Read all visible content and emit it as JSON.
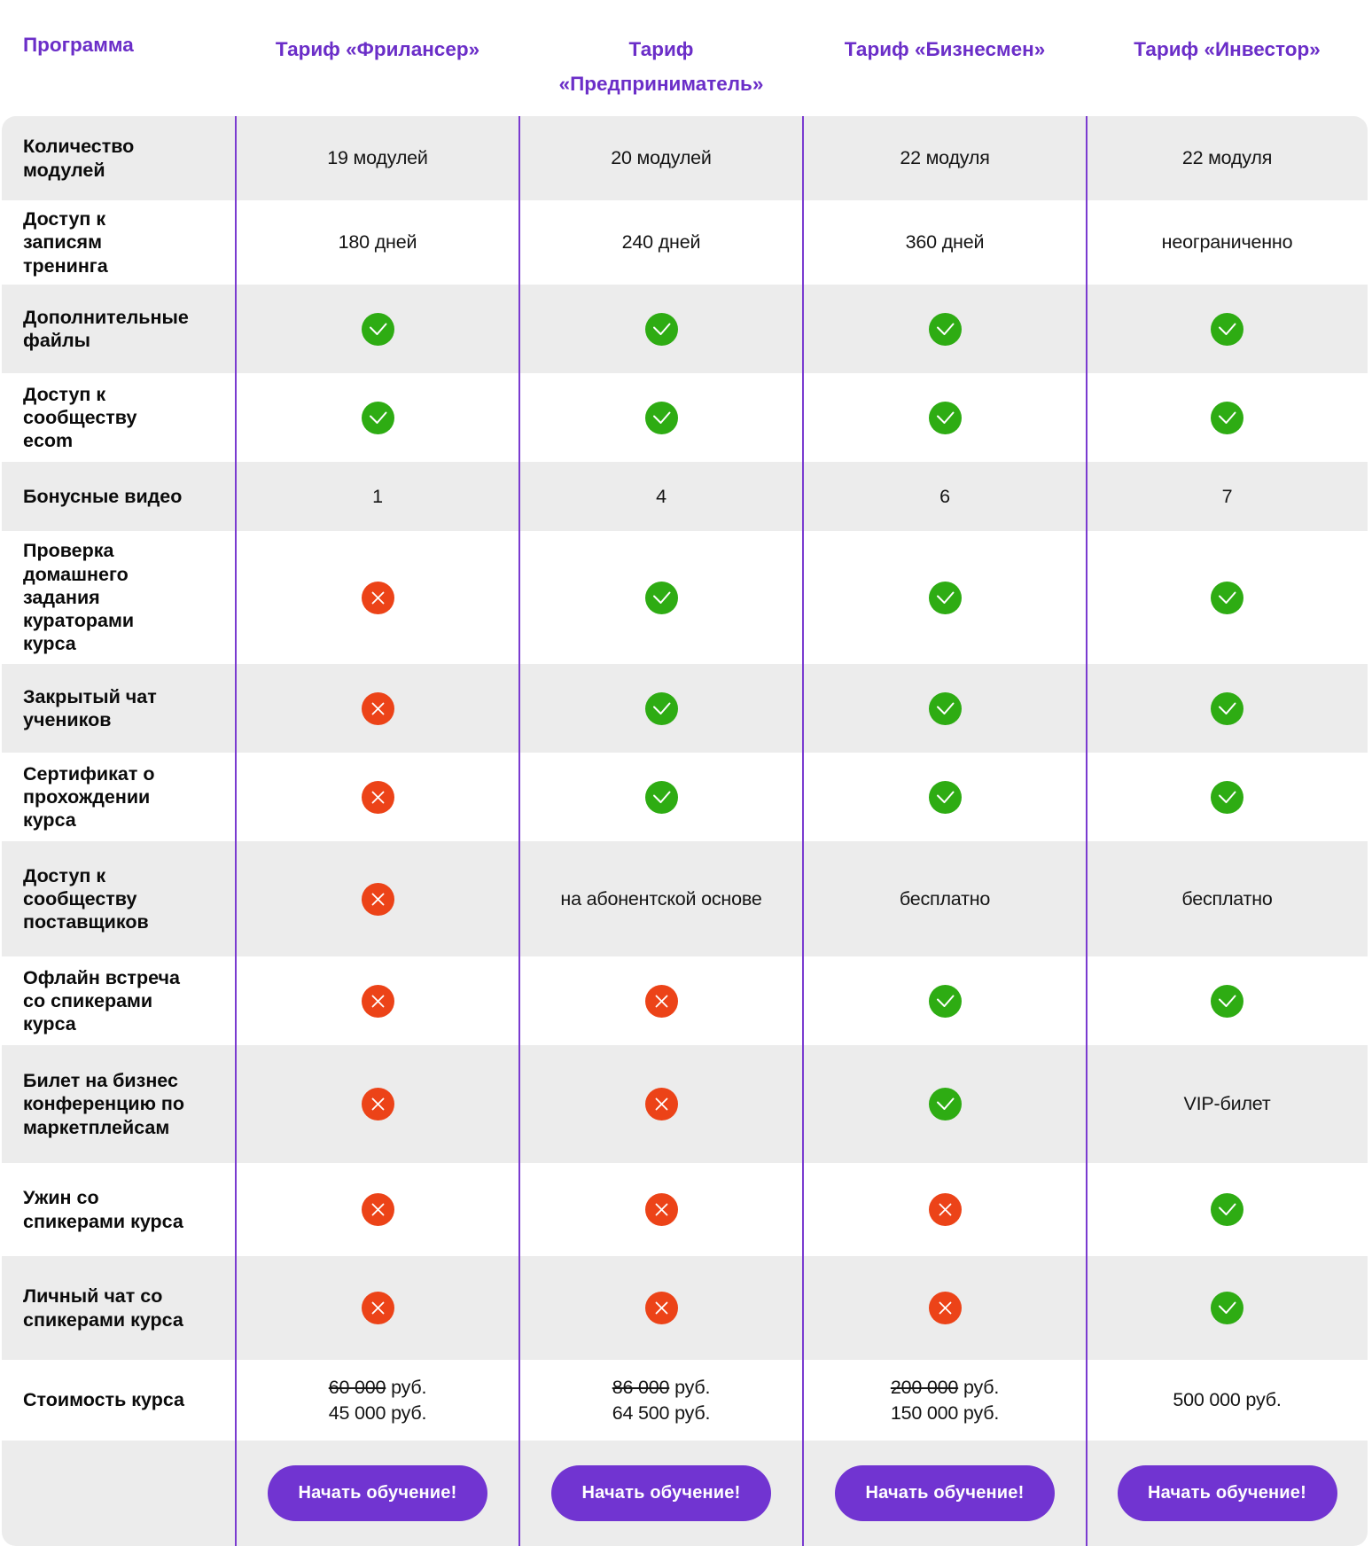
{
  "table": {
    "header": {
      "program": "Программа",
      "plans": [
        "Тариф «Фрилансер»",
        "Тариф «Предприниматель»",
        "Тариф «Бизнесмен»",
        "Тариф «Инвестор»"
      ]
    },
    "rows": [
      {
        "feature": "Количество модулей",
        "cells": [
          {
            "type": "text",
            "value": "19 модулей"
          },
          {
            "type": "text",
            "value": "20 модулей"
          },
          {
            "type": "text",
            "value": "22 модуля"
          },
          {
            "type": "text",
            "value": "22 модуля"
          }
        ]
      },
      {
        "feature": "Доступ к записям тренинга",
        "cells": [
          {
            "type": "text",
            "value": "180 дней"
          },
          {
            "type": "text",
            "value": "240 дней"
          },
          {
            "type": "text",
            "value": "360 дней"
          },
          {
            "type": "text",
            "value": "неограниченно"
          }
        ]
      },
      {
        "feature": "Дополнительные файлы",
        "cells": [
          {
            "type": "check"
          },
          {
            "type": "check"
          },
          {
            "type": "check"
          },
          {
            "type": "check"
          }
        ]
      },
      {
        "feature": "Доступ к сообществу ecom",
        "cells": [
          {
            "type": "check"
          },
          {
            "type": "check"
          },
          {
            "type": "check"
          },
          {
            "type": "check"
          }
        ]
      },
      {
        "feature": "Бонусные видео",
        "cells": [
          {
            "type": "text",
            "value": "1"
          },
          {
            "type": "text",
            "value": "4"
          },
          {
            "type": "text",
            "value": "6"
          },
          {
            "type": "text",
            "value": "7"
          }
        ]
      },
      {
        "feature": "Проверка домашнего задания кураторами курса",
        "cells": [
          {
            "type": "cross"
          },
          {
            "type": "check"
          },
          {
            "type": "check"
          },
          {
            "type": "check"
          }
        ]
      },
      {
        "feature": "Закрытый чат учеников",
        "cells": [
          {
            "type": "cross"
          },
          {
            "type": "check"
          },
          {
            "type": "check"
          },
          {
            "type": "check"
          }
        ]
      },
      {
        "feature": "Сертификат о прохождении курса",
        "cells": [
          {
            "type": "cross"
          },
          {
            "type": "check"
          },
          {
            "type": "check"
          },
          {
            "type": "check"
          }
        ]
      },
      {
        "feature": "Доступ к сообществу поставщиков",
        "cells": [
          {
            "type": "cross"
          },
          {
            "type": "text",
            "value": "на абонентской основе"
          },
          {
            "type": "text",
            "value": "бесплатно"
          },
          {
            "type": "text",
            "value": "бесплатно"
          }
        ]
      },
      {
        "feature": "Офлайн встреча со спикерами курса",
        "cells": [
          {
            "type": "cross"
          },
          {
            "type": "cross"
          },
          {
            "type": "check"
          },
          {
            "type": "check"
          }
        ]
      },
      {
        "feature": "Билет на бизнес конференцию по маркетплейсам",
        "cells": [
          {
            "type": "cross"
          },
          {
            "type": "cross"
          },
          {
            "type": "check"
          },
          {
            "type": "text",
            "value": "VIP-билет"
          }
        ]
      },
      {
        "feature": "Ужин со спикерами курса",
        "cells": [
          {
            "type": "cross"
          },
          {
            "type": "cross"
          },
          {
            "type": "cross"
          },
          {
            "type": "check"
          }
        ]
      },
      {
        "feature": "Личный чат со спикерами курса",
        "cells": [
          {
            "type": "cross"
          },
          {
            "type": "cross"
          },
          {
            "type": "cross"
          },
          {
            "type": "check"
          }
        ]
      },
      {
        "feature": "Стоимость курса",
        "cells": [
          {
            "type": "price",
            "old": "60 000",
            "new": "45 000",
            "unit": "руб."
          },
          {
            "type": "price",
            "old": "86 000",
            "new": "64 500",
            "unit": "руб."
          },
          {
            "type": "price",
            "old": "200 000",
            "new": "150 000",
            "unit": "руб."
          },
          {
            "type": "price",
            "old": null,
            "new": "500 000",
            "unit": "руб."
          }
        ]
      }
    ],
    "cta_label": "Начать обучение!",
    "colors": {
      "accent_purple": "#6B2EC8",
      "button_purple": "#7134D1",
      "divider_purple": "#7A3BD0",
      "row_gray": "#ECECEC",
      "check_green": "#2EAC13",
      "cross_red": "#EC4318"
    }
  }
}
